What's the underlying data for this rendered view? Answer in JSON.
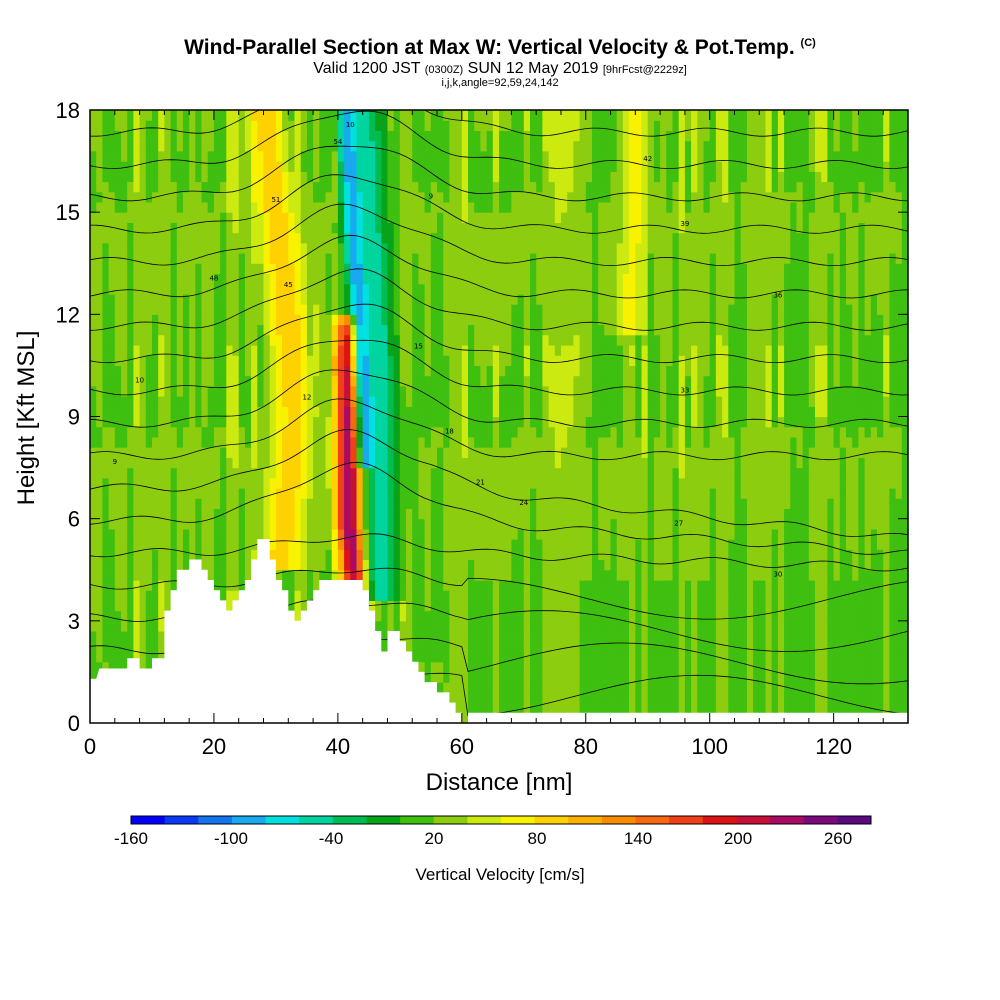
{
  "header": {
    "title_main": "Wind-Parallel Section at Max W: Vertical Velocity & Pot.Temp.",
    "title_mark": "(C)",
    "valid_a": "Valid 1200 JST",
    "valid_b": "(0300Z)",
    "valid_c": "SUN 12 May 2019",
    "valid_d": "[9hrFcst@2229z]",
    "indices": "i,j,k,angle=92,59,24,142"
  },
  "chart_data": {
    "type": "heatmap",
    "xlabel": "Distance [nm]",
    "ylabel": "Height [Kft MSL]",
    "xlim": [
      0,
      132
    ],
    "ylim": [
      0,
      18
    ],
    "x_ticks": [
      "0",
      "20",
      "40",
      "60",
      "80",
      "100",
      "120"
    ],
    "y_ticks": [
      "0",
      "3",
      "6",
      "9",
      "12",
      "15",
      "18"
    ],
    "grid": false,
    "colorbar": {
      "title": "Vertical Velocity [cm/s]",
      "placement": "bottom",
      "labels": [
        "-160",
        "-100",
        "-40",
        "20",
        "80",
        "140",
        "200",
        "260"
      ],
      "colors": [
        "#0000ff",
        "#0a3af8",
        "#1473ee",
        "#18a9ee",
        "#00e0e0",
        "#00d5a0",
        "#00bd52",
        "#08a318",
        "#3fbf0f",
        "#8ccd10",
        "#ccea10",
        "#f8f200",
        "#fdd200",
        "#fdb000",
        "#f88c00",
        "#f66812",
        "#f04018",
        "#de1414",
        "#c80f3a",
        "#a80a64",
        "#7c0a7c",
        "#5a0a80"
      ]
    },
    "background_value": 20,
    "terrain_profile": [
      [
        0,
        1.3
      ],
      [
        1,
        1.3
      ],
      [
        1.5,
        1.6
      ],
      [
        6,
        1.6
      ],
      [
        6,
        1.9
      ],
      [
        8,
        1.9
      ],
      [
        8,
        1.6
      ],
      [
        10,
        1.6
      ],
      [
        10,
        1.9
      ],
      [
        12,
        1.9
      ],
      [
        12,
        3.3
      ],
      [
        13,
        3.3
      ],
      [
        13,
        3.9
      ],
      [
        14,
        3.9
      ],
      [
        14,
        4.5
      ],
      [
        16,
        4.5
      ],
      [
        16,
        4.8
      ],
      [
        18,
        4.8
      ],
      [
        18,
        4.5
      ],
      [
        19,
        4.5
      ],
      [
        19,
        4.2
      ],
      [
        20,
        4.2
      ],
      [
        20,
        3.9
      ],
      [
        21,
        3.9
      ],
      [
        21,
        3.6
      ],
      [
        22,
        3.6
      ],
      [
        22,
        3.3
      ],
      [
        23,
        3.3
      ],
      [
        23,
        3.6
      ],
      [
        24,
        3.6
      ],
      [
        24,
        3.9
      ],
      [
        25,
        3.9
      ],
      [
        25,
        4.2
      ],
      [
        26,
        4.2
      ],
      [
        26,
        4.8
      ],
      [
        27,
        4.8
      ],
      [
        27,
        5.4
      ],
      [
        29,
        5.4
      ],
      [
        29,
        4.8
      ],
      [
        30,
        4.8
      ],
      [
        30,
        4.2
      ],
      [
        31,
        4.2
      ],
      [
        31,
        3.9
      ],
      [
        32,
        3.9
      ],
      [
        32,
        3.3
      ],
      [
        33,
        3.3
      ],
      [
        33,
        3.0
      ],
      [
        34,
        3.0
      ],
      [
        34,
        3.3
      ],
      [
        35,
        3.3
      ],
      [
        35,
        3.6
      ],
      [
        36,
        3.6
      ],
      [
        36,
        3.9
      ],
      [
        37,
        3.9
      ],
      [
        37,
        4.2
      ],
      [
        40,
        4.2
      ],
      [
        40,
        4.2
      ],
      [
        44,
        4.2
      ],
      [
        44,
        3.9
      ],
      [
        45,
        3.9
      ],
      [
        45,
        3.3
      ],
      [
        46,
        3.3
      ],
      [
        46,
        2.7
      ],
      [
        47,
        2.7
      ],
      [
        47,
        2.1
      ],
      [
        48,
        2.1
      ],
      [
        48,
        2.7
      ],
      [
        50,
        2.7
      ],
      [
        50,
        2.4
      ],
      [
        51,
        2.4
      ],
      [
        51,
        2.1
      ],
      [
        52,
        2.1
      ],
      [
        52,
        1.8
      ],
      [
        53,
        1.8
      ],
      [
        53,
        1.5
      ],
      [
        54,
        1.5
      ],
      [
        54,
        1.2
      ],
      [
        56,
        1.2
      ],
      [
        56,
        0.9
      ],
      [
        58,
        0.9
      ],
      [
        58,
        0.6
      ],
      [
        59,
        0.6
      ],
      [
        59,
        0.3
      ],
      [
        60,
        0.3
      ],
      [
        60,
        0.0
      ],
      [
        61,
        0.0
      ],
      [
        61,
        0.3
      ],
      [
        132,
        0.3
      ]
    ],
    "features": [
      {
        "name": "updraft-core",
        "value": 260,
        "path": [
          [
            43,
            4.2
          ],
          [
            42,
            6
          ],
          [
            42,
            9
          ],
          [
            42,
            11.5
          ]
        ],
        "width_nm": 2.5,
        "fade_top": 12.5
      },
      {
        "name": "updraft-band",
        "value": 90,
        "path": [
          [
            31,
            5
          ],
          [
            33,
            9
          ],
          [
            32,
            12
          ],
          [
            30,
            15
          ],
          [
            28,
            18
          ]
        ],
        "width_nm": 3.5
      },
      {
        "name": "downdraft-band",
        "value": -150,
        "path": [
          [
            45,
            8
          ],
          [
            44,
            12
          ],
          [
            43,
            14
          ],
          [
            42,
            18
          ]
        ],
        "width_nm": 2.0
      },
      {
        "name": "downdraft-edge",
        "value": -60,
        "path": [
          [
            47,
            4
          ],
          [
            47,
            9
          ],
          [
            46,
            12
          ],
          [
            44,
            18
          ]
        ],
        "width_nm": 3.5
      },
      {
        "name": "weak-updraft-right",
        "value": 60,
        "path": [
          [
            87,
            12
          ],
          [
            88,
            15
          ],
          [
            88,
            18
          ]
        ],
        "width_nm": 2.5
      }
    ],
    "isentrope_labels": [
      "9",
      "10",
      "12",
      "15",
      "18",
      "21",
      "24",
      "27",
      "30",
      "33",
      "36",
      "39",
      "42",
      "45",
      "48",
      "51",
      "54"
    ]
  }
}
